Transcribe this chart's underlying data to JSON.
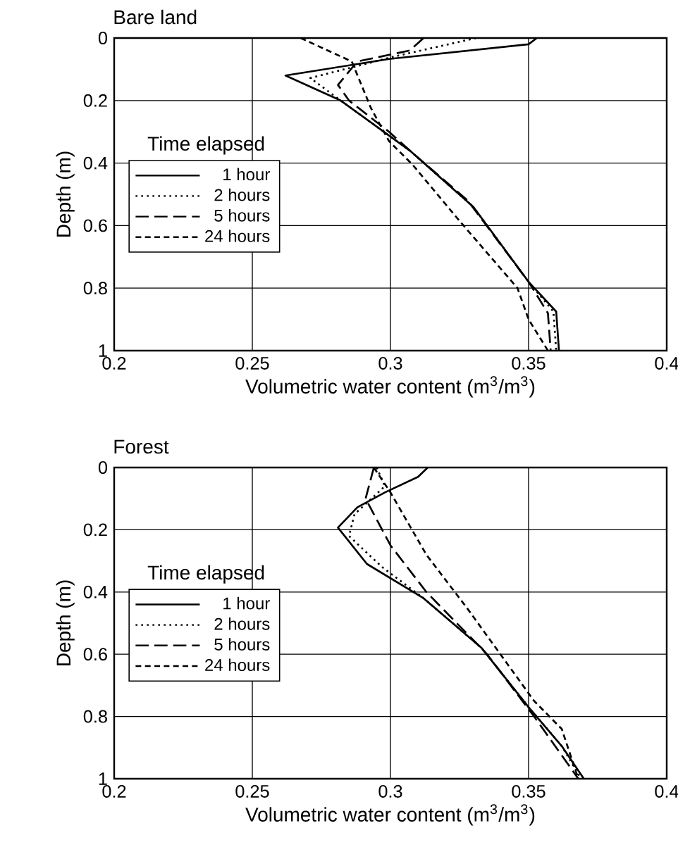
{
  "chart_data": [
    {
      "type": "line",
      "title": "Bare land",
      "xlabel": "Volumetric water content (m$^{3}$/m$^{3}$)",
      "ylabel": "Depth (m)",
      "legend_title": "Time elapsed",
      "legend": "left",
      "grid": true,
      "xlim": [
        0.2,
        0.4
      ],
      "ylim": [
        1,
        0
      ],
      "xticks": [
        0.2,
        0.25,
        0.3,
        0.35,
        0.4
      ],
      "yticks": [
        0,
        0.2,
        0.4,
        0.6,
        0.8,
        1
      ],
      "series": [
        {
          "name": "1 hour",
          "color": "#000000",
          "line_style": "solid",
          "x": [
            0.353,
            0.35,
            0.2995,
            0.262,
            0.282,
            0.307,
            0.33,
            0.35,
            0.36,
            0.361
          ],
          "values": [
            0,
            0.02,
            0.067,
            0.12,
            0.2,
            0.36,
            0.54,
            0.78,
            0.875,
            1
          ]
        },
        {
          "name": "2 hours",
          "color": "#000000",
          "line_style": "dotted",
          "x": [
            0.331,
            0.301,
            0.271,
            0.282,
            0.307,
            0.33,
            0.35,
            0.359,
            0.36
          ],
          "values": [
            0,
            0.06,
            0.128,
            0.2,
            0.36,
            0.54,
            0.78,
            0.875,
            1
          ]
        },
        {
          "name": "5 hours",
          "color": "#000000",
          "line_style": "long dashed",
          "x": [
            0.312,
            0.307,
            0.288,
            0.281,
            0.285,
            0.2995,
            0.307,
            0.328,
            0.35,
            0.357,
            0.358
          ],
          "values": [
            0,
            0.04,
            0.075,
            0.15,
            0.2,
            0.3,
            0.36,
            0.52,
            0.78,
            0.88,
            1
          ]
        },
        {
          "name": "24 hours",
          "color": "#000000",
          "line_style": "dashed",
          "x": [
            0.2675,
            0.286,
            0.293,
            0.2995,
            0.308,
            0.325,
            0.346,
            0.35,
            0.357
          ],
          "values": [
            0,
            0.075,
            0.225,
            0.33,
            0.405,
            0.585,
            0.8,
            0.9,
            1
          ]
        }
      ]
    },
    {
      "type": "line",
      "title": "Forest",
      "xlabel": "Volumetric water content (m$^{3}$/m$^{3}$)",
      "ylabel": "Depth (m)",
      "legend_title": "Time elapsed",
      "legend": "left",
      "grid": true,
      "xlim": [
        0.2,
        0.4
      ],
      "ylim": [
        1,
        0
      ],
      "xticks": [
        0.2,
        0.25,
        0.3,
        0.35,
        0.4
      ],
      "yticks": [
        0,
        0.2,
        0.4,
        0.6,
        0.8,
        1
      ],
      "series": [
        {
          "name": "1 hour",
          "color": "#000000",
          "line_style": "solid",
          "x": [
            0.3135,
            0.31,
            0.298,
            0.288,
            0.281,
            0.2915,
            0.312,
            0.333,
            0.35,
            0.362,
            0.37
          ],
          "values": [
            0,
            0.03,
            0.08,
            0.128,
            0.193,
            0.31,
            0.42,
            0.58,
            0.77,
            0.895,
            1
          ]
        },
        {
          "name": "2 hours",
          "color": "#000000",
          "line_style": "dotted",
          "x": [
            0.295,
            0.298,
            0.287,
            0.285,
            0.297,
            0.312,
            0.333,
            0.35,
            0.362,
            0.369
          ],
          "values": [
            0,
            0.06,
            0.15,
            0.22,
            0.32,
            0.42,
            0.58,
            0.77,
            0.895,
            1
          ]
        },
        {
          "name": "5 hours",
          "color": "#000000",
          "line_style": "long dashed",
          "x": [
            0.294,
            0.291,
            0.3,
            0.313,
            0.335,
            0.352,
            0.368
          ],
          "values": [
            0,
            0.1,
            0.25,
            0.4,
            0.6,
            0.8,
            1
          ]
        },
        {
          "name": "24 hours",
          "color": "#000000",
          "line_style": "dashed",
          "x": [
            0.294,
            0.3,
            0.313,
            0.328,
            0.352,
            0.362,
            0.368
          ],
          "values": [
            0,
            0.08,
            0.28,
            0.455,
            0.75,
            0.84,
            1
          ]
        }
      ]
    }
  ]
}
